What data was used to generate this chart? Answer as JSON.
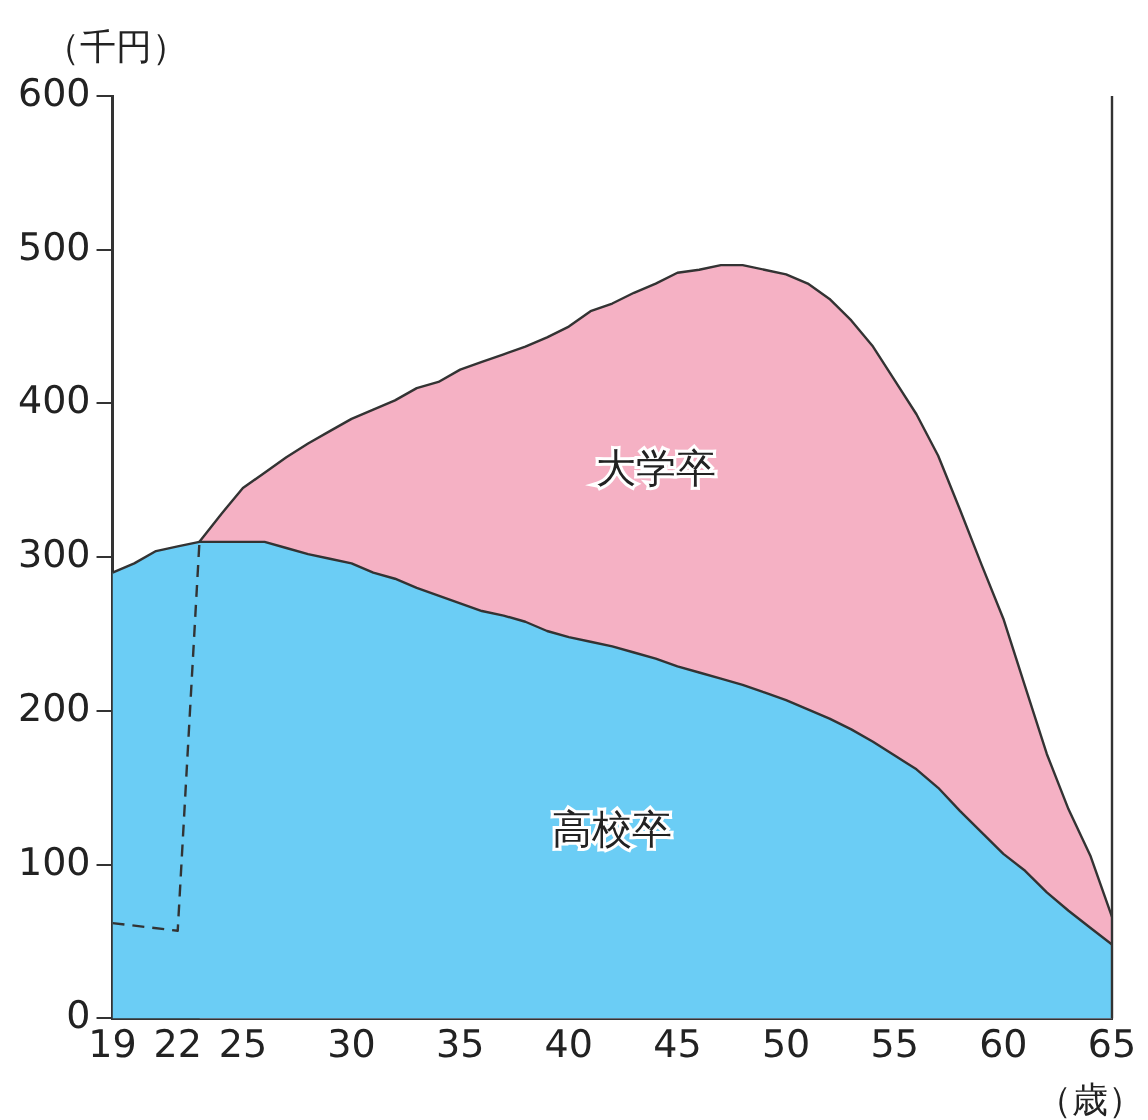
{
  "chart_data": {
    "type": "area",
    "ylabel": "（千円）",
    "xlabel": "（歳）",
    "xlim": [
      19,
      65
    ],
    "xticks": [
      19,
      22,
      25,
      30,
      35,
      40,
      45,
      50,
      55,
      60,
      65
    ],
    "ylim": [
      0,
      600
    ],
    "yticks": [
      0,
      100,
      200,
      300,
      400,
      500,
      600
    ],
    "grid": false,
    "legend": false,
    "series": [
      {
        "name": "大学卒",
        "type": "area",
        "color": "#f5b1c4",
        "x": [
          23,
          24,
          25,
          26,
          27,
          28,
          29,
          30,
          31,
          32,
          33,
          34,
          35,
          36,
          37,
          38,
          39,
          40,
          41,
          42,
          43,
          44,
          45,
          46,
          47,
          48,
          49,
          50,
          51,
          52,
          53,
          54,
          55,
          56,
          57,
          58,
          59,
          60,
          61,
          62,
          63,
          64,
          65
        ],
        "values": [
          310,
          328,
          345,
          355,
          365,
          374,
          382,
          390,
          396,
          402,
          410,
          414,
          422,
          427,
          432,
          437,
          443,
          450,
          460,
          465,
          472,
          478,
          485,
          487,
          490,
          490,
          487,
          484,
          478,
          468,
          454,
          437,
          415,
          393,
          366,
          331,
          295,
          260,
          216,
          172,
          136,
          106,
          66
        ]
      },
      {
        "name": "高校卒",
        "type": "area",
        "color": "#6bcdf5",
        "x": [
          19,
          20,
          21,
          22,
          23,
          24,
          25,
          26,
          27,
          28,
          29,
          30,
          31,
          32,
          33,
          34,
          35,
          36,
          37,
          38,
          39,
          40,
          41,
          42,
          43,
          44,
          45,
          46,
          47,
          48,
          49,
          50,
          51,
          52,
          53,
          54,
          55,
          56,
          57,
          58,
          59,
          60,
          61,
          62,
          63,
          64,
          65
        ],
        "values": [
          290,
          296,
          304,
          307,
          310,
          310,
          310,
          310,
          306,
          302,
          299,
          296,
          290,
          286,
          280,
          275,
          270,
          265,
          262,
          258,
          252,
          248,
          245,
          242,
          238,
          234,
          229,
          225,
          221,
          217,
          212,
          207,
          201,
          195,
          188,
          180,
          171,
          162,
          150,
          135,
          121,
          107,
          96,
          82,
          70,
          59,
          48
        ]
      },
      {
        "type": "line",
        "line_style": "dashed",
        "color": "#333333",
        "x": [
          19,
          22,
          23
        ],
        "values": [
          62,
          57,
          310
        ]
      }
    ]
  }
}
